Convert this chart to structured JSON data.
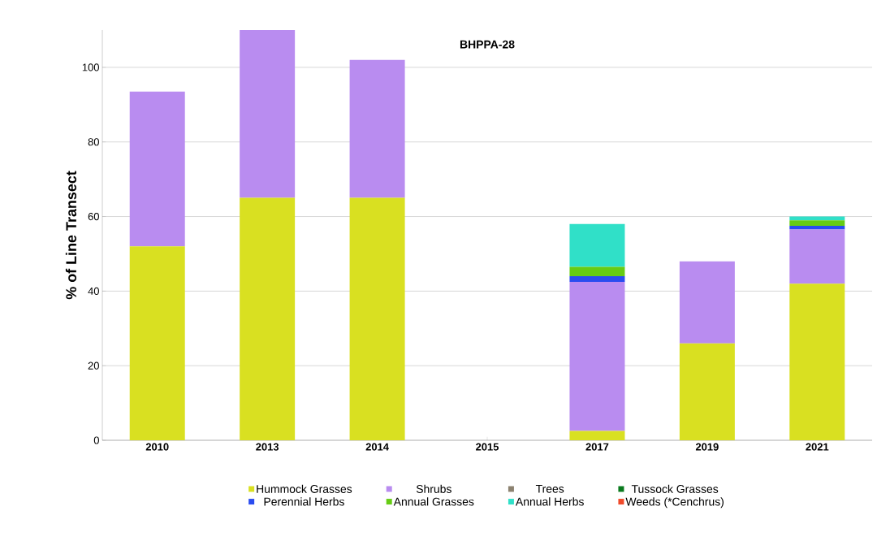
{
  "chart_data": {
    "type": "bar",
    "stacked": true,
    "title": "BHPPA-28",
    "ylabel": "% of Line Transect",
    "categories": [
      "2010",
      "2013",
      "2014",
      "2015",
      "2017",
      "2019",
      "2021"
    ],
    "series": [
      {
        "name": "Hummock Grasses",
        "color": "#d9e021",
        "values": [
          52,
          65,
          65,
          null,
          2.5,
          26,
          42
        ]
      },
      {
        "name": "Shrubs",
        "color": "#b98cf0",
        "values": [
          41.5,
          45,
          37,
          null,
          40,
          22,
          14.5
        ]
      },
      {
        "name": "Trees",
        "color": "#8c8270",
        "values": [
          0,
          0,
          0,
          null,
          0,
          0,
          0
        ]
      },
      {
        "name": "Tussock Grasses",
        "color": "#0a7a1e",
        "values": [
          0,
          0,
          0,
          null,
          0,
          0,
          0
        ]
      },
      {
        "name": "Perennial Herbs",
        "color": "#2a4cf0",
        "values": [
          0,
          0,
          0,
          null,
          1.5,
          0,
          1
        ]
      },
      {
        "name": "Annual Grasses",
        "color": "#66cc14",
        "values": [
          0,
          0,
          0,
          null,
          2.5,
          0,
          1.5
        ]
      },
      {
        "name": "Annual Herbs",
        "color": "#30e0c8",
        "values": [
          0,
          0,
          0,
          null,
          11.5,
          0,
          1
        ]
      },
      {
        "name": "Weeds (*Cenchrus)",
        "color": "#f04a2a",
        "values": [
          0,
          0,
          0,
          null,
          0,
          0,
          0
        ]
      }
    ],
    "ylim": [
      0,
      110
    ],
    "yticks": [
      0,
      20,
      40,
      60,
      80,
      100
    ],
    "grid": "y",
    "legend": "bottom"
  }
}
